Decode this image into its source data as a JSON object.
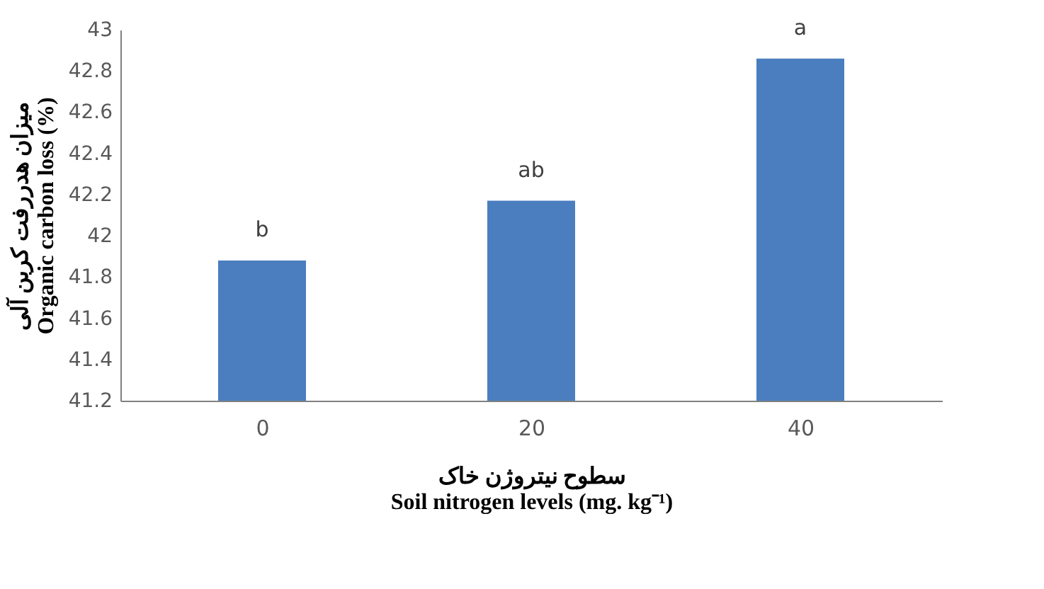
{
  "chart_data": {
    "type": "bar",
    "categories": [
      "0",
      "20",
      "40"
    ],
    "values": [
      41.88,
      42.17,
      42.86
    ],
    "color": "#4a7ebf",
    "ylim": [
      41.2,
      43
    ],
    "yticks": [
      41.2,
      41.4,
      41.6,
      41.8,
      42,
      42.2,
      42.4,
      42.6,
      42.8,
      43
    ],
    "ylabel": [
      "میزان هدررفت کربن آلی",
      "Organic carbon loss (%)"
    ],
    "xlabel": [
      "سطوح نیتروژن خاک",
      "Soil nitrogen levels (mg. kg⁻¹)"
    ],
    "annotations": [
      {
        "text": "b",
        "x": "0",
        "y": 41.88
      },
      {
        "text": "ab",
        "x": "20",
        "y": 42.17
      },
      {
        "text": "a",
        "x": "40",
        "y": 42.86
      }
    ],
    "grid": false
  }
}
